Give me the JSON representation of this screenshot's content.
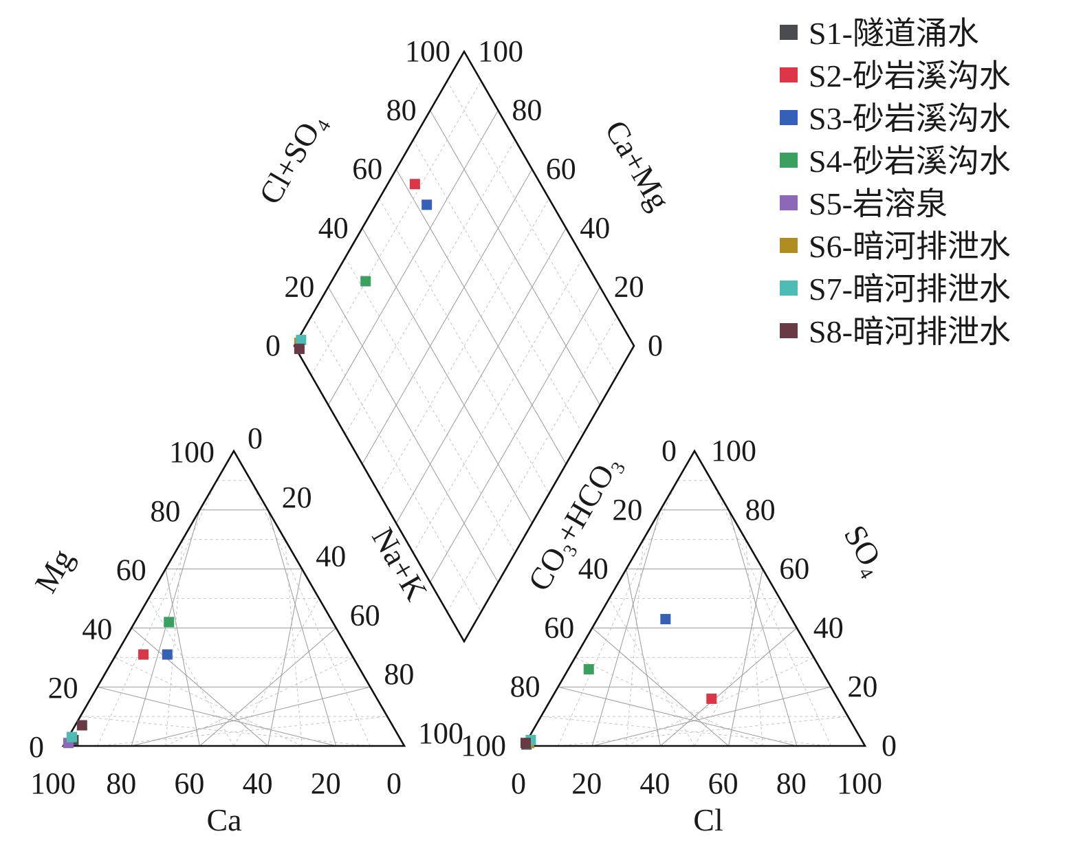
{
  "chart_data": {
    "type": "scatter",
    "subtype": "piper-trilinear",
    "cation_triangle": {
      "axes": {
        "bottom": {
          "label": "Ca",
          "ticks": [
            "100",
            "80",
            "60",
            "40",
            "20",
            "0"
          ]
        },
        "left": {
          "label": "Mg",
          "ticks": [
            "0",
            "20",
            "40",
            "60",
            "80",
            "100"
          ]
        },
        "right": {
          "label": "Na+K",
          "ticks": [
            "0",
            "20",
            "40",
            "60",
            "80",
            "100"
          ]
        }
      }
    },
    "anion_triangle": {
      "axes": {
        "bottom": {
          "label": "Cl",
          "ticks": [
            "0",
            "20",
            "40",
            "60",
            "80",
            "100"
          ]
        },
        "left": {
          "label": "CO₃+HCO₃",
          "ticks": [
            "0",
            "20",
            "40",
            "60",
            "80",
            "100"
          ]
        },
        "right": {
          "label": "SO₄",
          "ticks": [
            "0",
            "20",
            "40",
            "60",
            "80",
            "100"
          ]
        }
      }
    },
    "diamond": {
      "axes": {
        "upper_left": {
          "label": "Cl+SO₄",
          "ticks": [
            "0",
            "20",
            "40",
            "60",
            "80",
            "100"
          ]
        },
        "upper_right": {
          "label": "Ca+Mg",
          "ticks": [
            "0",
            "20",
            "40",
            "60",
            "80",
            "100"
          ]
        }
      }
    },
    "legend_position": "top-right",
    "series": [
      {
        "name": "S1-隧道涌水",
        "color": "#4a4b50",
        "cation": {
          "Ca": 96,
          "Mg": 2,
          "NaK": 2
        },
        "anion": {
          "CO3HCO3": 99,
          "Cl": 0.5,
          "SO4": 0.5
        }
      },
      {
        "name": "S2-砂岩溪沟水",
        "color": "#dc3545",
        "cation": {
          "Ca": 61,
          "Mg": 31,
          "NaK": 8
        },
        "anion": {
          "CO3HCO3": 37,
          "Cl": 47,
          "SO4": 16
        }
      },
      {
        "name": "S3-砂岩溪沟水",
        "color": "#3560b8",
        "cation": {
          "Ca": 54,
          "Mg": 31,
          "NaK": 15
        },
        "anion": {
          "CO3HCO3": 37,
          "Cl": 20,
          "SO4": 43
        }
      },
      {
        "name": "S4-砂岩溪沟水",
        "color": "#3aa060",
        "cation": {
          "Ca": 48,
          "Mg": 42,
          "NaK": 10
        },
        "anion": {
          "CO3HCO3": 68,
          "Cl": 6,
          "SO4": 26
        }
      },
      {
        "name": "S5-岩溶泉",
        "color": "#8e67b8",
        "cation": {
          "Ca": 98,
          "Mg": 1,
          "NaK": 1
        },
        "anion": {
          "CO3HCO3": 98,
          "Cl": 1,
          "SO4": 1
        }
      },
      {
        "name": "S6-暗河排泄水",
        "color": "#b08d20",
        "cation": {
          "Ca": 96,
          "Mg": 3,
          "NaK": 1
        },
        "anion": {
          "CO3HCO3": 98,
          "Cl": 1,
          "SO4": 1
        }
      },
      {
        "name": "S7-暗河排泄水",
        "color": "#4cbcb4",
        "cation": {
          "Ca": 96,
          "Mg": 3,
          "NaK": 1
        },
        "anion": {
          "CO3HCO3": 97,
          "Cl": 1,
          "SO4": 2
        }
      },
      {
        "name": "S8-暗河排泄水",
        "color": "#6a3a44",
        "cation": {
          "Ca": 91,
          "Mg": 7,
          "NaK": 2
        },
        "anion": {
          "CO3HCO3": 99,
          "Cl": 0,
          "SO4": 1
        }
      }
    ]
  }
}
